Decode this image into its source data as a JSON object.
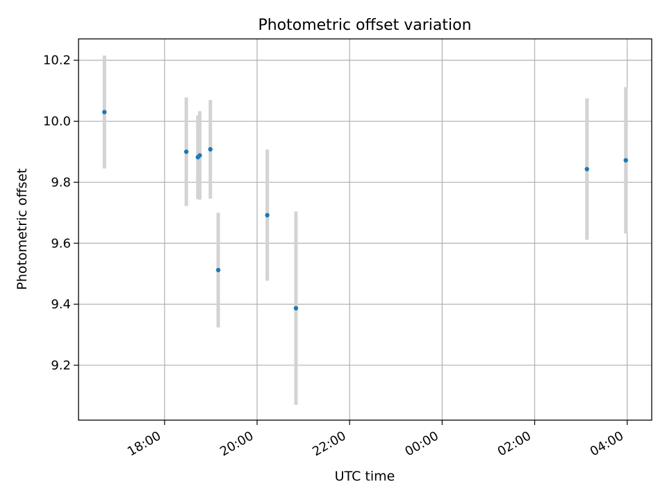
{
  "chart_data": {
    "type": "scatter",
    "title": "Photometric offset variation",
    "xlabel": "UTC time",
    "ylabel": "Photometric offset",
    "x_tick_labels": [
      "18:00",
      "20:00",
      "22:00",
      "00:00",
      "02:00",
      "04:00"
    ],
    "x_ticks_hours": [
      18,
      20,
      22,
      24,
      26,
      28
    ],
    "y_ticks": [
      9.2,
      9.4,
      9.6,
      9.8,
      10.0,
      10.2
    ],
    "y_tick_labels": [
      "9.2",
      "9.4",
      "9.6",
      "9.8",
      "10.0",
      "10.2"
    ],
    "xlim_hours": [
      16.14,
      28.53
    ],
    "ylim": [
      9.02,
      10.27
    ],
    "grid": true,
    "series": [
      {
        "marker_color": "#1f77b4",
        "errorbar_color": "#d3d3d3",
        "points": [
          {
            "x_hours": 16.7,
            "y": 10.03,
            "yerr": 0.185
          },
          {
            "x_hours": 18.47,
            "y": 9.9,
            "yerr": 0.178
          },
          {
            "x_hours": 18.72,
            "y": 9.882,
            "yerr": 0.137
          },
          {
            "x_hours": 18.76,
            "y": 9.888,
            "yerr": 0.145
          },
          {
            "x_hours": 18.99,
            "y": 9.908,
            "yerr": 0.162
          },
          {
            "x_hours": 19.16,
            "y": 9.512,
            "yerr": 0.188
          },
          {
            "x_hours": 20.22,
            "y": 9.692,
            "yerr": 0.215
          },
          {
            "x_hours": 20.84,
            "y": 9.387,
            "yerr": 0.317
          },
          {
            "x_hours": 27.13,
            "y": 9.843,
            "yerr": 0.232
          },
          {
            "x_hours": 27.97,
            "y": 9.872,
            "yerr": 0.24
          }
        ]
      }
    ]
  }
}
